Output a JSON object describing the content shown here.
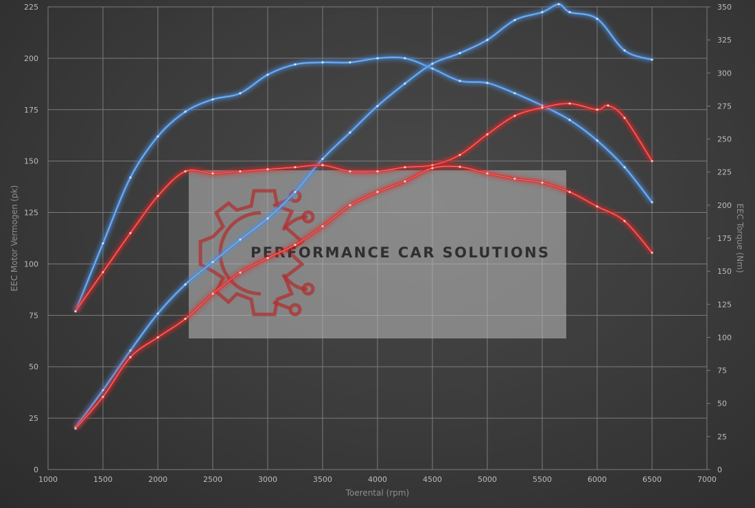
{
  "chart_data": {
    "type": "line",
    "x_label": "Toerental (rpm)",
    "y_left_label": "EEC Motor Vermogen (pk)",
    "y_right_label": "EEC Torque (Nm)",
    "x_range": [
      1000,
      7000
    ],
    "y_left_range": [
      0,
      225
    ],
    "y_right_range": [
      0,
      350
    ],
    "x_ticks": [
      "1000",
      "1500",
      "2000",
      "2500",
      "3000",
      "3500",
      "4000",
      "4500",
      "5000",
      "5500",
      "6000",
      "6500",
      "7000"
    ],
    "y_left_ticks": [
      "0",
      "25",
      "50",
      "75",
      "100",
      "125",
      "150",
      "175",
      "200",
      "225"
    ],
    "y_right_ticks": [
      "0",
      "25",
      "50",
      "75",
      "100",
      "125",
      "150",
      "175",
      "200",
      "225",
      "250",
      "275",
      "300",
      "325",
      "350"
    ],
    "grid": true,
    "series": [
      {
        "color": "#4a8fe0",
        "axis": "left",
        "x": [
          1250,
          1500,
          1750,
          2000,
          2250,
          2500,
          2750,
          3000,
          3250,
          3500,
          3750,
          4000,
          4250,
          4500,
          4750,
          5000,
          5250,
          5500,
          5750,
          6000,
          6250,
          6500
        ],
        "y": [
          77,
          110,
          142,
          162,
          174,
          180,
          183,
          192,
          197,
          198,
          198,
          200,
          200,
          195,
          189,
          188,
          183,
          177,
          170,
          160,
          147,
          130
        ]
      },
      {
        "color": "#4a8fe0",
        "axis": "right",
        "x": [
          1250,
          1500,
          1750,
          2000,
          2250,
          2500,
          2750,
          3000,
          3250,
          3500,
          3750,
          4000,
          4250,
          4500,
          4750,
          5000,
          5250,
          5500,
          5650,
          5750,
          6000,
          6250,
          6500
        ],
        "y": [
          32,
          60,
          90,
          118,
          140,
          157,
          174,
          190,
          210,
          235,
          255,
          275,
          292,
          307,
          315,
          325,
          340,
          346,
          352,
          346,
          341,
          317,
          310
        ]
      },
      {
        "color": "#e02a2a",
        "axis": "left",
        "x": [
          1250,
          1500,
          1750,
          2000,
          2250,
          2500,
          2750,
          3000,
          3250,
          3500,
          3750,
          4000,
          4250,
          4500,
          4750,
          5000,
          5250,
          5500,
          5750,
          6000,
          6100,
          6250,
          6500
        ],
        "y": [
          77,
          96,
          115,
          133,
          145,
          144,
          145,
          146,
          147,
          148,
          145,
          145,
          147,
          148,
          153,
          163,
          172,
          176,
          178,
          175,
          177,
          171,
          150
        ]
      },
      {
        "color": "#e02a2a",
        "axis": "right",
        "x": [
          1250,
          1500,
          1750,
          2000,
          2250,
          2500,
          2750,
          3000,
          3250,
          3500,
          3750,
          4000,
          4250,
          4500,
          4750,
          5000,
          5250,
          5500,
          5750,
          6000,
          6250,
          6500
        ],
        "y": [
          31,
          55,
          85,
          100,
          114,
          133,
          149,
          160,
          170,
          184,
          200,
          210,
          218,
          228,
          229,
          224,
          220,
          217,
          210,
          199,
          188,
          164
        ]
      }
    ]
  },
  "watermark": {
    "text": "PERFORMANCE CAR SOLUTIONS",
    "icon": "gear-circuit-logo",
    "color": "#b03030"
  }
}
